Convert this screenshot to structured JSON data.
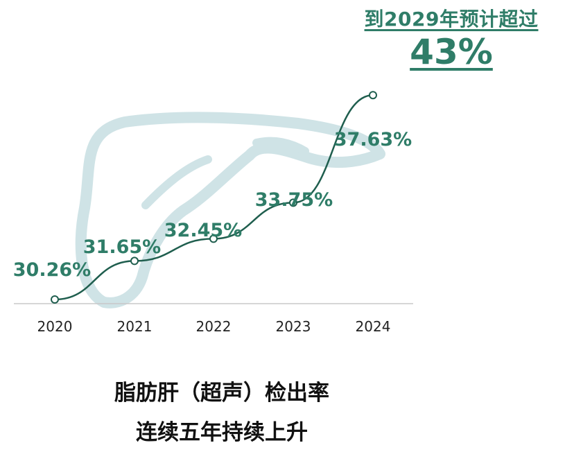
{
  "headline": {
    "line1": "到2029年预计超过",
    "line2": "43%"
  },
  "chart_data": {
    "type": "line",
    "categories": [
      "2020",
      "2021",
      "2022",
      "2023",
      "2024"
    ],
    "series": [
      {
        "values": [
          30.26,
          31.65,
          32.45,
          33.75,
          37.63
        ]
      }
    ],
    "data_labels": [
      "30.26%",
      "31.65%",
      "32.45%",
      "33.75%",
      "37.63%"
    ],
    "title": "",
    "xlabel": "",
    "ylabel": "",
    "grid": false,
    "colors": {
      "line": "#1f5e4e",
      "label": "#2f7d68",
      "liver": "#cfe3e6",
      "baseline": "#c8c8c8",
      "tick": "#222222"
    }
  },
  "caption": {
    "line1": "脂肪肝（超声）检出率",
    "line2": "连续五年持续上升"
  }
}
